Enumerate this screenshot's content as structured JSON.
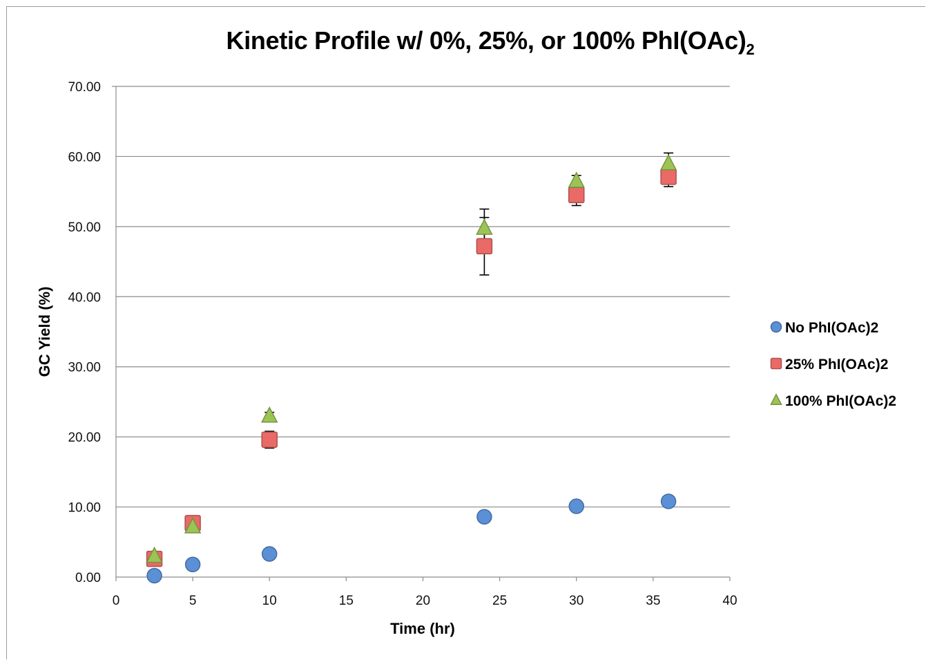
{
  "chart_data": {
    "type": "scatter",
    "title_main": "Kinetic Profile w/ 0%, 25%, or 100% PhI(OAc)",
    "title_sub": "2",
    "xlabel": "Time (hr)",
    "ylabel": "GC Yield (%)",
    "xlim": [
      0,
      40
    ],
    "ylim": [
      0,
      70
    ],
    "x_ticks": [
      "0",
      "5",
      "10",
      "15",
      "20",
      "25",
      "30",
      "35",
      "40"
    ],
    "y_ticks": [
      "0.00",
      "10.00",
      "20.00",
      "30.00",
      "40.00",
      "50.00",
      "60.00",
      "70.00"
    ],
    "grid": "horizontal",
    "legend_position": "right",
    "series": [
      {
        "name": "No PhI(OAc)2",
        "marker": "circle",
        "color": "#5b8fd6",
        "points": [
          {
            "x": 2.5,
            "y": 0.2
          },
          {
            "x": 5,
            "y": 1.8
          },
          {
            "x": 10,
            "y": 3.3
          },
          {
            "x": 24,
            "y": 8.6
          },
          {
            "x": 30,
            "y": 10.1
          },
          {
            "x": 36,
            "y": 10.8
          }
        ]
      },
      {
        "name": "25% PhI(OAc)2",
        "marker": "square",
        "color": "#e96a66",
        "points": [
          {
            "x": 2.5,
            "y": 2.6
          },
          {
            "x": 5,
            "y": 7.7
          },
          {
            "x": 10,
            "y": 19.6,
            "err": 1.2
          },
          {
            "x": 24,
            "y": 47.2,
            "err": 4.1
          },
          {
            "x": 30,
            "y": 54.5,
            "err": 1.5
          },
          {
            "x": 36,
            "y": 57.1,
            "err": 1.4
          }
        ]
      },
      {
        "name": "100% PhI(OAc)2",
        "marker": "triangle",
        "color": "#9cc455",
        "points": [
          {
            "x": 2.5,
            "y": 3.0
          },
          {
            "x": 5,
            "y": 7.2
          },
          {
            "x": 10,
            "y": 23.0,
            "err": 0.5
          },
          {
            "x": 24,
            "y": 49.8,
            "err": 2.7
          },
          {
            "x": 30,
            "y": 56.5,
            "err": 0.8
          },
          {
            "x": 36,
            "y": 59.0,
            "err": 1.5
          }
        ]
      }
    ]
  }
}
